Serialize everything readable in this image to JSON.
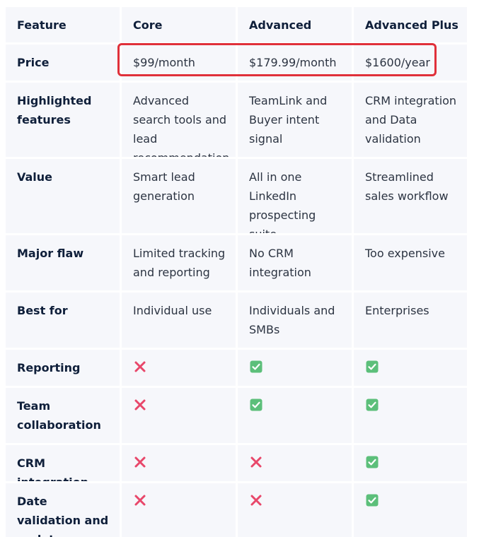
{
  "columns": [
    "Feature",
    "Core",
    "Advanced",
    "Advanced Plus"
  ],
  "rows": [
    {
      "label": "Price",
      "values": [
        "$99/month",
        "$179.99/month",
        "$1600/year"
      ]
    },
    {
      "label": "Highlighted features",
      "values": [
        "Advanced search tools and lead recommendation",
        "TeamLink and Buyer intent signal",
        "CRM integration and Data validation"
      ]
    },
    {
      "label": "Value",
      "values": [
        "Smart lead generation",
        "All in one LinkedIn prospecting suite",
        "Streamlined sales workflow"
      ]
    },
    {
      "label": "Major flaw",
      "values": [
        "Limited tracking and reporting",
        "No CRM integration",
        "Too expensive"
      ]
    },
    {
      "label": "Best for",
      "values": [
        "Individual use",
        "Individuals and SMBs",
        "Enterprises"
      ]
    },
    {
      "label": "Reporting",
      "values": [
        "cross-icon",
        "check-icon",
        "check-icon"
      ]
    },
    {
      "label": "Team collaboration",
      "values": [
        "cross-icon",
        "check-icon",
        "check-icon"
      ]
    },
    {
      "label": "CRM integration",
      "values": [
        "cross-icon",
        "cross-icon",
        "check-icon"
      ]
    },
    {
      "label": "Date validation and updates",
      "values": [
        "cross-icon",
        "cross-icon",
        "check-icon"
      ]
    }
  ],
  "colors": {
    "cell_bg": "#f6f7fb",
    "highlight_border": "#e0303a",
    "check_bg": "#5cbf7a",
    "cross": "#e8476a"
  }
}
